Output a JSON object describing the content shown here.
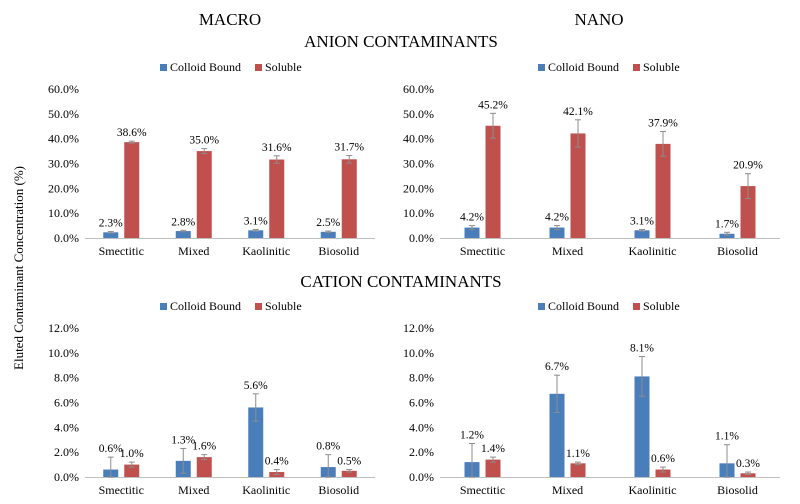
{
  "headers": {
    "macro": "MACRO",
    "nano": "NANO",
    "anion": "ANION CONTAMINANTS",
    "cation": "CATION CONTAMINANTS"
  },
  "ylabel": "Eluted Contaminant Concentration (%)",
  "colors": {
    "colloid": "#4a7ebb",
    "soluble": "#c0504d"
  },
  "chart_data": [
    {
      "type": "bar",
      "categories": [
        "Smectitic",
        "Mixed",
        "Kaolinitic",
        "Biosolid"
      ],
      "legend": [
        "Colloid Bound",
        "Soluble"
      ],
      "ylim": [
        0,
        60
      ],
      "yticks": [
        "0.0%",
        "10.0%",
        "20.0%",
        "30.0%",
        "40.0%",
        "50.0%",
        "60.0%"
      ],
      "series": [
        {
          "name": "Colloid Bound",
          "values": [
            2.3,
            2.8,
            3.1,
            2.5
          ],
          "labels": [
            "2.3%",
            "2.8%",
            "3.1%",
            "2.5%"
          ],
          "errors": [
            0.3,
            0.3,
            0.3,
            0.3
          ]
        },
        {
          "name": "Soluble",
          "values": [
            38.6,
            35.0,
            31.6,
            31.7
          ],
          "labels": [
            "38.6%",
            "35.0%",
            "31.6%",
            "31.7%"
          ],
          "errors": [
            0.4,
            1.0,
            1.5,
            1.5
          ]
        }
      ]
    },
    {
      "type": "bar",
      "categories": [
        "Smectitic",
        "Mixed",
        "Kaolinitic",
        "Biosolid"
      ],
      "legend": [
        "Colloid Bound",
        "Soluble"
      ],
      "ylim": [
        0,
        60
      ],
      "yticks": [
        "0.0%",
        "10.0%",
        "20.0%",
        "30.0%",
        "40.0%",
        "50.0%",
        "60.0%"
      ],
      "series": [
        {
          "name": "Colloid Bound",
          "values": [
            4.2,
            4.2,
            3.1,
            1.7
          ],
          "labels": [
            "4.2%",
            "4.2%",
            "3.1%",
            "1.7%"
          ],
          "errors": [
            0.8,
            0.8,
            0.3,
            0.6
          ]
        },
        {
          "name": "Soluble",
          "values": [
            45.2,
            42.1,
            37.9,
            20.9
          ],
          "labels": [
            "45.2%",
            "42.1%",
            "37.9%",
            "20.9%"
          ],
          "errors": [
            5.0,
            5.5,
            5.0,
            5.0
          ]
        }
      ]
    },
    {
      "type": "bar",
      "categories": [
        "Smectitic",
        "Mixed",
        "Kaolinitic",
        "Biosolid"
      ],
      "legend": [
        "Colloid Bound",
        "Soluble"
      ],
      "ylim": [
        0,
        12
      ],
      "yticks": [
        "0.0%",
        "2.0%",
        "4.0%",
        "6.0%",
        "8.0%",
        "10.0%",
        "12.0%"
      ],
      "series": [
        {
          "name": "Colloid Bound",
          "values": [
            0.6,
            1.3,
            5.6,
            0.8
          ],
          "labels": [
            "0.6%",
            "1.3%",
            "5.6%",
            "0.8%"
          ],
          "errors": [
            1.0,
            1.0,
            1.1,
            1.0
          ]
        },
        {
          "name": "Soluble",
          "values": [
            1.0,
            1.6,
            0.4,
            0.5
          ],
          "labels": [
            "1.0%",
            "1.6%",
            "0.4%",
            "0.5%"
          ],
          "errors": [
            0.2,
            0.2,
            0.2,
            0.1
          ]
        }
      ]
    },
    {
      "type": "bar",
      "categories": [
        "Smectitic",
        "Mixed",
        "Kaolinitic",
        "Biosolid"
      ],
      "legend": [
        "Colloid Bound",
        "Soluble"
      ],
      "ylim": [
        0,
        12
      ],
      "yticks": [
        "0.0%",
        "2.0%",
        "4.0%",
        "6.0%",
        "8.0%",
        "10.0%",
        "12.0%"
      ],
      "series": [
        {
          "name": "Colloid Bound",
          "values": [
            1.2,
            6.7,
            8.1,
            1.1
          ],
          "labels": [
            "1.2%",
            "6.7%",
            "8.1%",
            "1.1%"
          ],
          "errors": [
            1.5,
            1.5,
            1.6,
            1.5
          ]
        },
        {
          "name": "Soluble",
          "values": [
            1.4,
            1.1,
            0.6,
            0.3
          ],
          "labels": [
            "1.4%",
            "1.1%",
            "0.6%",
            "0.3%"
          ],
          "errors": [
            0.2,
            0.1,
            0.2,
            0.1
          ]
        }
      ]
    }
  ]
}
